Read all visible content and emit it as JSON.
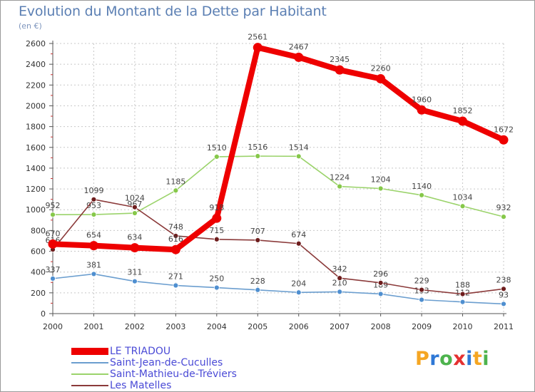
{
  "title": "Evolution du Montant de la Dette par Habitant",
  "subtitle": "(en €)",
  "logo": {
    "text": "Proxiti",
    "letter_colors": [
      "#f5a623",
      "#2f78d6",
      "#4db34d",
      "#e53030",
      "#2f78d6",
      "#f5a623",
      "#4db34d"
    ]
  },
  "chart_data": {
    "type": "line",
    "title": "Evolution du Montant de la Dette par Habitant",
    "ylabel": "(en €)",
    "xlabel": "",
    "x": [
      "2000",
      "2001",
      "2002",
      "2003",
      "2004",
      "2005",
      "2006",
      "2007",
      "2008",
      "2009",
      "2010",
      "2011"
    ],
    "ylim": [
      0,
      2600
    ],
    "yticks": [
      0,
      200,
      400,
      600,
      800,
      1000,
      1200,
      1400,
      1600,
      1800,
      2000,
      2200,
      2400,
      2600
    ],
    "grid": true,
    "legend_position": "bottom-left",
    "series": [
      {
        "name": "Saint-Jean-de-Cuculles",
        "color": "#6b9ecf",
        "marker_color": "#4f8fd0",
        "values": [
          337,
          381,
          311,
          271,
          250,
          228,
          204,
          210,
          189,
          133,
          112,
          93
        ],
        "labels": [
          "337",
          "381",
          "311",
          "271",
          "250",
          "228",
          "204",
          "210",
          "189",
          "133",
          "112",
          "93"
        ]
      },
      {
        "name": "Saint-Mathieu-de-Tréviers",
        "color": "#9bd36b",
        "marker_color": "#86c84a",
        "values": [
          952,
          953,
          967,
          1185,
          1510,
          1516,
          1514,
          1224,
          1204,
          1140,
          1034,
          932
        ],
        "labels": [
          "952",
          "953",
          "967",
          "1185",
          "1510",
          "1516",
          "1514",
          "1224",
          "1204",
          "1140",
          "1034",
          "932"
        ]
      },
      {
        "name": "Les Matelles",
        "color": "#8b3a3a",
        "marker_color": "#6e1d1d",
        "values": [
          616,
          1099,
          1024,
          748,
          715,
          707,
          674,
          342,
          296,
          229,
          188,
          238
        ],
        "labels": [
          "616",
          "1099",
          "1024",
          "748",
          "715",
          "707",
          "674",
          "342",
          "296",
          "229",
          "188",
          "238"
        ]
      },
      {
        "name": "LE TRIADOU",
        "color": "#ee0000",
        "marker_color": "#ee0000",
        "values": [
          670,
          654,
          634,
          616,
          918,
          2561,
          2467,
          2345,
          2260,
          1960,
          1852,
          1672
        ],
        "labels": [
          "670",
          "654",
          "634",
          "616",
          "918",
          "2561",
          "2467",
          "2345",
          "2260",
          "1960",
          "1852",
          "1672"
        ]
      }
    ]
  },
  "legend": [
    {
      "label": "LE TRIADOU",
      "color": "#ee0000"
    },
    {
      "label": "Saint-Jean-de-Cuculles",
      "color": "#6b9ecf"
    },
    {
      "label": "Saint-Mathieu-de-Tréviers",
      "color": "#9bd36b"
    },
    {
      "label": "Les Matelles",
      "color": "#8b3a3a"
    }
  ]
}
